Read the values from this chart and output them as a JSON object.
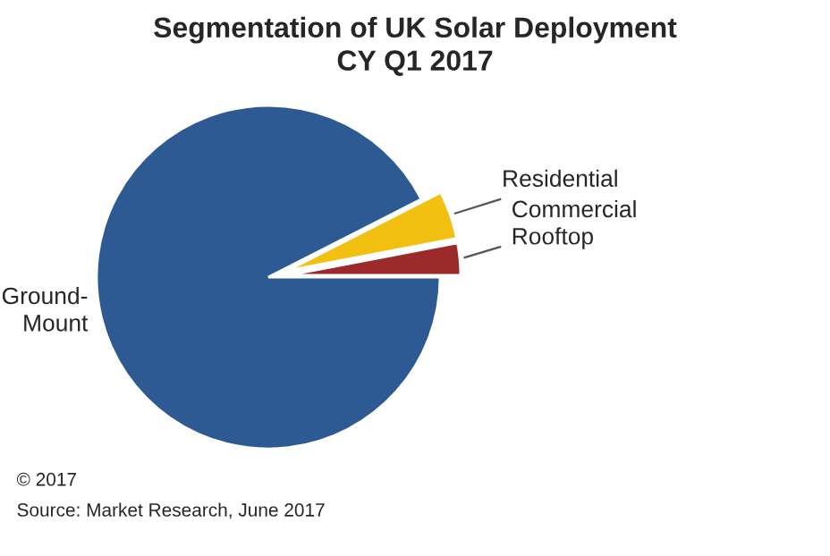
{
  "chart_data": {
    "type": "pie",
    "title": "Segmentation of UK Solar Deployment\nCY Q1 2017",
    "categories": [
      "Ground-\nMount",
      "Commercial\nRooftop",
      "Residential"
    ],
    "values": [
      92.5,
      3.0,
      4.5
    ],
    "colors": [
      "#2e5a94",
      "#9b2b2a",
      "#f2c011"
    ],
    "annotations": [
      "© 2017",
      "Source: Market Research, June 2017"
    ]
  }
}
